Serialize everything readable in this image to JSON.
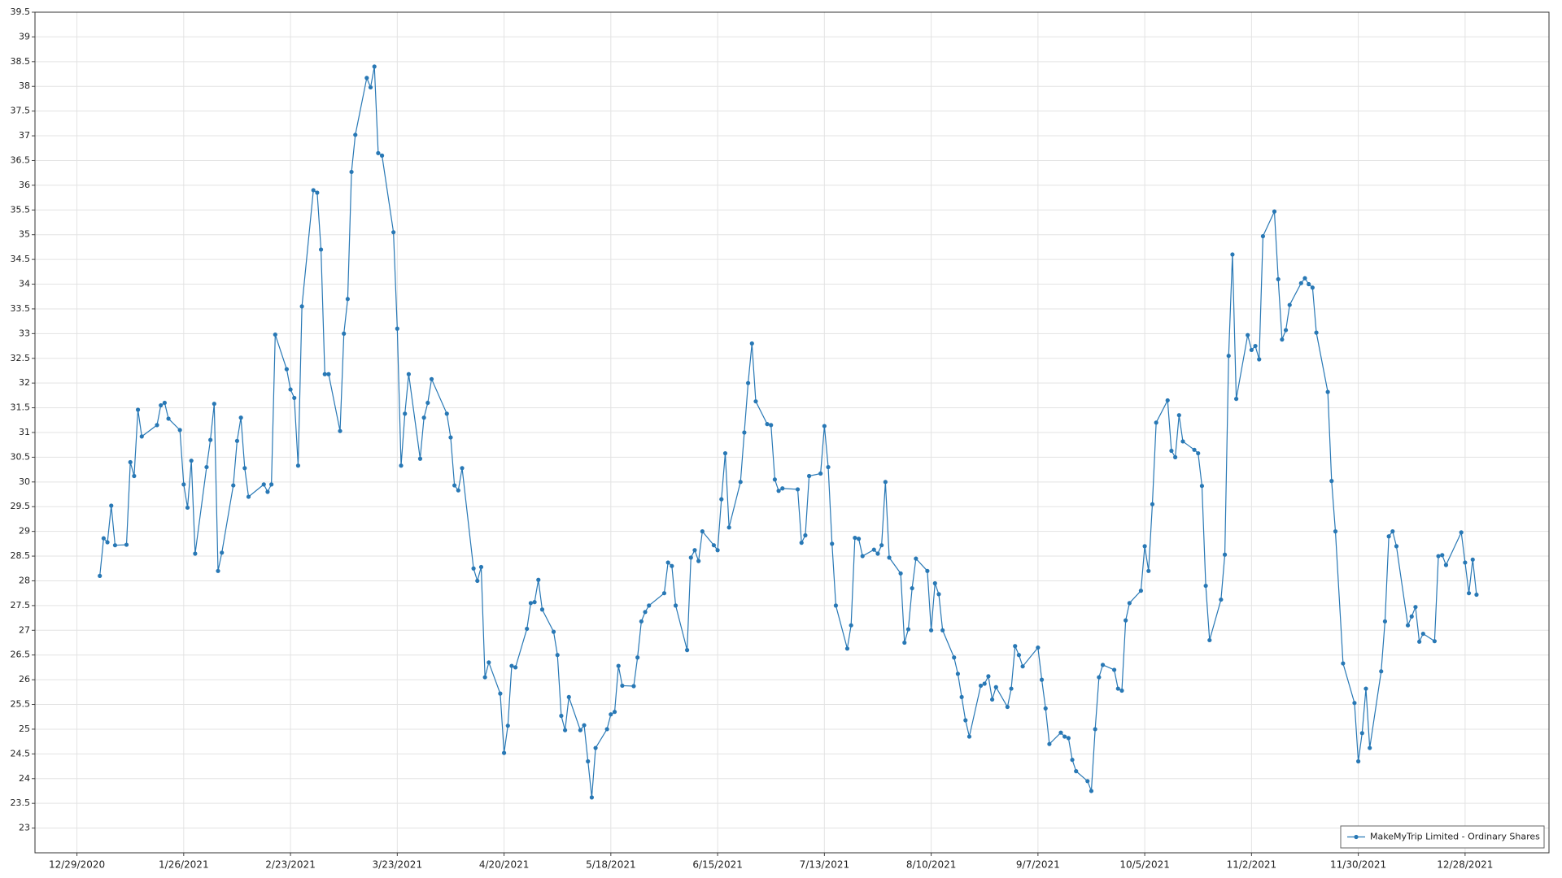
{
  "chart_data": {
    "type": "line",
    "x": [
      "1/4/2021",
      "1/5/2021",
      "1/6/2021",
      "1/7/2021",
      "1/8/2021",
      "1/11/2021",
      "1/12/2021",
      "1/13/2021",
      "1/14/2021",
      "1/15/2021",
      "1/19/2021",
      "1/20/2021",
      "1/21/2021",
      "1/22/2021",
      "1/25/2021",
      "1/26/2021",
      "1/27/2021",
      "1/28/2021",
      "1/29/2021",
      "2/1/2021",
      "2/2/2021",
      "2/3/2021",
      "2/4/2021",
      "2/5/2021",
      "2/8/2021",
      "2/9/2021",
      "2/10/2021",
      "2/11/2021",
      "2/12/2021",
      "2/16/2021",
      "2/17/2021",
      "2/18/2021",
      "2/19/2021",
      "2/22/2021",
      "2/23/2021",
      "2/24/2021",
      "2/25/2021",
      "2/26/2021",
      "3/1/2021",
      "3/2/2021",
      "3/3/2021",
      "3/4/2021",
      "3/5/2021",
      "3/8/2021",
      "3/9/2021",
      "3/10/2021",
      "3/11/2021",
      "3/12/2021",
      "3/15/2021",
      "3/16/2021",
      "3/17/2021",
      "3/18/2021",
      "3/19/2021",
      "3/22/2021",
      "3/23/2021",
      "3/24/2021",
      "3/25/2021",
      "3/26/2021",
      "3/29/2021",
      "3/30/2021",
      "3/31/2021",
      "4/1/2021",
      "4/5/2021",
      "4/6/2021",
      "4/7/2021",
      "4/8/2021",
      "4/9/2021",
      "4/12/2021",
      "4/13/2021",
      "4/14/2021",
      "4/15/2021",
      "4/16/2021",
      "4/19/2021",
      "4/20/2021",
      "4/21/2021",
      "4/22/2021",
      "4/23/2021",
      "4/26/2021",
      "4/27/2021",
      "4/28/2021",
      "4/29/2021",
      "4/30/2021",
      "5/3/2021",
      "5/4/2021",
      "5/5/2021",
      "5/6/2021",
      "5/7/2021",
      "5/10/2021",
      "5/11/2021",
      "5/12/2021",
      "5/13/2021",
      "5/14/2021",
      "5/17/2021",
      "5/18/2021",
      "5/19/2021",
      "5/20/2021",
      "5/21/2021",
      "5/24/2021",
      "5/25/2021",
      "5/26/2021",
      "5/27/2021",
      "5/28/2021",
      "6/1/2021",
      "6/2/2021",
      "6/3/2021",
      "6/4/2021",
      "6/7/2021",
      "6/8/2021",
      "6/9/2021",
      "6/10/2021",
      "6/11/2021",
      "6/14/2021",
      "6/15/2021",
      "6/16/2021",
      "6/17/2021",
      "6/18/2021",
      "6/21/2021",
      "6/22/2021",
      "6/23/2021",
      "6/24/2021",
      "6/25/2021",
      "6/28/2021",
      "6/29/2021",
      "6/30/2021",
      "7/1/2021",
      "7/2/2021",
      "7/6/2021",
      "7/7/2021",
      "7/8/2021",
      "7/9/2021",
      "7/12/2021",
      "7/13/2021",
      "7/14/2021",
      "7/15/2021",
      "7/16/2021",
      "7/19/2021",
      "7/20/2021",
      "7/21/2021",
      "7/22/2021",
      "7/23/2021",
      "7/26/2021",
      "7/27/2021",
      "7/28/2021",
      "7/29/2021",
      "7/30/2021",
      "8/2/2021",
      "8/3/2021",
      "8/4/2021",
      "8/5/2021",
      "8/6/2021",
      "8/9/2021",
      "8/10/2021",
      "8/11/2021",
      "8/12/2021",
      "8/13/2021",
      "8/16/2021",
      "8/17/2021",
      "8/18/2021",
      "8/19/2021",
      "8/20/2021",
      "8/23/2021",
      "8/24/2021",
      "8/25/2021",
      "8/26/2021",
      "8/27/2021",
      "8/30/2021",
      "8/31/2021",
      "9/1/2021",
      "9/2/2021",
      "9/3/2021",
      "9/7/2021",
      "9/8/2021",
      "9/9/2021",
      "9/10/2021",
      "9/13/2021",
      "9/14/2021",
      "9/15/2021",
      "9/16/2021",
      "9/17/2021",
      "9/20/2021",
      "9/21/2021",
      "9/22/2021",
      "9/23/2021",
      "9/24/2021",
      "9/27/2021",
      "9/28/2021",
      "9/29/2021",
      "9/30/2021",
      "10/1/2021",
      "10/4/2021",
      "10/5/2021",
      "10/6/2021",
      "10/7/2021",
      "10/8/2021",
      "10/11/2021",
      "10/12/2021",
      "10/13/2021",
      "10/14/2021",
      "10/15/2021",
      "10/18/2021",
      "10/19/2021",
      "10/20/2021",
      "10/21/2021",
      "10/22/2021",
      "10/25/2021",
      "10/26/2021",
      "10/27/2021",
      "10/28/2021",
      "10/29/2021",
      "11/1/2021",
      "11/2/2021",
      "11/3/2021",
      "11/4/2021",
      "11/5/2021",
      "11/8/2021",
      "11/9/2021",
      "11/10/2021",
      "11/11/2021",
      "11/12/2021",
      "11/15/2021",
      "11/16/2021",
      "11/17/2021",
      "11/18/2021",
      "11/19/2021",
      "11/22/2021",
      "11/23/2021",
      "11/24/2021",
      "11/26/2021",
      "11/29/2021",
      "11/30/2021",
      "12/1/2021",
      "12/2/2021",
      "12/3/2021",
      "12/6/2021",
      "12/7/2021",
      "12/8/2021",
      "12/9/2021",
      "12/10/2021",
      "12/13/2021",
      "12/14/2021",
      "12/15/2021",
      "12/16/2021",
      "12/17/2021",
      "12/20/2021",
      "12/21/2021",
      "12/22/2021",
      "12/23/2021",
      "12/27/2021",
      "12/28/2021",
      "12/29/2021",
      "12/30/2021",
      "12/31/2021"
    ],
    "series": [
      {
        "name": "MakeMyTrip Limited - Ordinary Shares",
        "color": "#2878b5",
        "values": [
          28.1,
          28.86,
          28.78,
          29.52,
          28.72,
          28.73,
          30.4,
          30.12,
          31.46,
          30.92,
          31.15,
          31.55,
          31.6,
          31.28,
          31.05,
          29.95,
          29.48,
          30.43,
          28.55,
          30.3,
          30.85,
          31.58,
          28.2,
          28.57,
          29.93,
          30.83,
          31.3,
          30.28,
          29.7,
          29.95,
          29.8,
          29.95,
          32.98,
          32.28,
          31.87,
          31.7,
          30.33,
          33.55,
          35.9,
          35.85,
          34.7,
          32.18,
          32.18,
          31.03,
          33.0,
          33.7,
          36.27,
          37.02,
          38.17,
          37.98,
          38.4,
          36.65,
          36.6,
          35.05,
          33.1,
          30.33,
          31.38,
          32.18,
          30.47,
          31.3,
          31.6,
          32.08,
          31.38,
          30.9,
          29.93,
          29.83,
          30.28,
          28.25,
          28.0,
          28.28,
          26.05,
          26.35,
          25.72,
          24.52,
          25.07,
          26.28,
          26.25,
          27.03,
          27.55,
          27.57,
          28.02,
          27.42,
          26.97,
          26.5,
          25.27,
          24.98,
          25.65,
          24.98,
          25.08,
          24.35,
          23.62,
          24.62,
          25.0,
          25.3,
          25.35,
          26.28,
          25.88,
          25.87,
          26.45,
          27.18,
          27.37,
          27.5,
          27.75,
          28.37,
          28.3,
          27.5,
          26.6,
          28.47,
          28.62,
          28.4,
          29.0,
          28.72,
          28.62,
          29.65,
          30.58,
          29.08,
          30.0,
          31.0,
          32.0,
          32.8,
          31.63,
          31.17,
          31.15,
          30.05,
          29.82,
          29.87,
          29.85,
          28.77,
          28.92,
          30.12,
          30.17,
          31.13,
          30.3,
          28.75,
          27.5,
          26.63,
          27.1,
          28.87,
          28.85,
          28.5,
          28.63,
          28.55,
          28.72,
          30.0,
          28.47,
          28.15,
          26.75,
          27.02,
          27.85,
          28.45,
          28.2,
          27.0,
          27.95,
          27.73,
          27.0,
          26.45,
          26.12,
          25.65,
          25.18,
          24.85,
          25.88,
          25.92,
          26.07,
          25.6,
          25.85,
          25.45,
          25.82,
          26.68,
          26.5,
          26.27,
          26.65,
          26.0,
          25.42,
          24.7,
          24.93,
          24.85,
          24.82,
          24.38,
          24.15,
          23.95,
          23.75,
          25.0,
          26.05,
          26.3,
          26.2,
          25.82,
          25.78,
          27.2,
          27.55,
          27.8,
          28.7,
          28.2,
          29.55,
          31.2,
          31.65,
          30.63,
          30.5,
          31.35,
          30.82,
          30.65,
          30.58,
          29.92,
          27.9,
          26.8,
          27.62,
          28.53,
          32.55,
          34.6,
          31.68,
          32.97,
          32.67,
          32.75,
          32.48,
          34.97,
          35.47,
          34.1,
          32.88,
          33.07,
          33.58,
          34.02,
          34.12,
          34.0,
          33.93,
          33.02,
          31.82,
          30.02,
          29.0,
          26.33,
          25.53,
          24.35,
          24.92,
          25.82,
          24.62,
          26.17,
          27.18,
          28.9,
          29.0,
          28.7,
          27.1,
          27.28,
          27.47,
          26.77,
          26.93,
          26.78,
          28.5,
          28.52,
          28.32,
          28.98,
          28.37,
          27.75,
          28.43,
          27.72
        ]
      }
    ],
    "xlim": [
      "12/18/2020",
      "1/19/2022"
    ],
    "xticks": [
      "12/29/2020",
      "1/26/2021",
      "2/23/2021",
      "3/23/2021",
      "4/20/2021",
      "5/18/2021",
      "6/15/2021",
      "7/13/2021",
      "8/10/2021",
      "9/7/2021",
      "10/5/2021",
      "11/2/2021",
      "11/30/2021",
      "12/28/2021"
    ],
    "ylim": [
      22.5,
      39.5
    ],
    "yticks": [
      23,
      23.5,
      24,
      24.5,
      25,
      25.5,
      26,
      26.5,
      27,
      27.5,
      28,
      28.5,
      29,
      29.5,
      30,
      30.5,
      31,
      31.5,
      32,
      32.5,
      33,
      33.5,
      34,
      34.5,
      35,
      35.5,
      36,
      36.5,
      37,
      37.5,
      38,
      38.5,
      39,
      39.5
    ],
    "grid": true,
    "legend": "bottom-right"
  }
}
